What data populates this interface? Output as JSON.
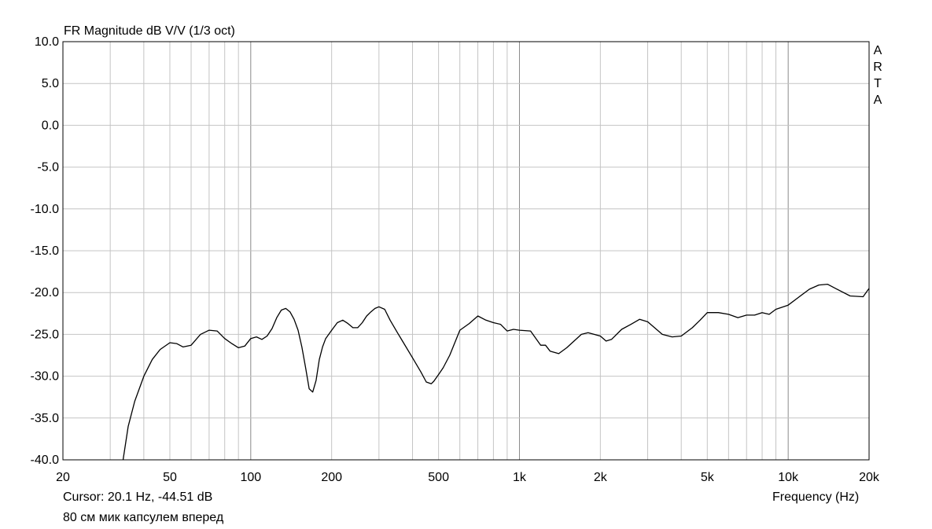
{
  "chart_data": {
    "type": "line",
    "title": "FR Magnitude dB V/V (1/3 oct)",
    "xlabel": "Frequency (Hz)",
    "ylabel": "",
    "x_scale": "log",
    "xlim": [
      20,
      20000
    ],
    "ylim": [
      -40,
      10
    ],
    "grid": true,
    "y_ticks": [
      "10.0",
      "5.0",
      "0.0",
      "-5.0",
      "-10.0",
      "-15.0",
      "-20.0",
      "-25.0",
      "-30.0",
      "-35.0",
      "-40.0"
    ],
    "x_ticks": [
      {
        "value": 20,
        "label": "20"
      },
      {
        "value": 50,
        "label": "50"
      },
      {
        "value": 100,
        "label": "100"
      },
      {
        "value": 200,
        "label": "200"
      },
      {
        "value": 500,
        "label": "500"
      },
      {
        "value": 1000,
        "label": "1k"
      },
      {
        "value": 2000,
        "label": "2k"
      },
      {
        "value": 5000,
        "label": "5k"
      },
      {
        "value": 10000,
        "label": "10k"
      },
      {
        "value": 20000,
        "label": "20k"
      }
    ],
    "watermark": [
      "A",
      "R",
      "T",
      "A"
    ],
    "series": [
      {
        "color": "#000000",
        "x": [
          33.5,
          35,
          37,
          40,
          43,
          46,
          50,
          53,
          56,
          60,
          65,
          70,
          75,
          80,
          85,
          90,
          95,
          100,
          105,
          110,
          115,
          120,
          125,
          130,
          135,
          140,
          145,
          150,
          155,
          160,
          165,
          170,
          175,
          180,
          185,
          190,
          200,
          210,
          220,
          230,
          240,
          250,
          260,
          270,
          280,
          290,
          300,
          315,
          330,
          350,
          370,
          400,
          430,
          450,
          470,
          480,
          500,
          520,
          550,
          600,
          650,
          700,
          750,
          800,
          850,
          900,
          950,
          1000,
          1100,
          1200,
          1250,
          1300,
          1400,
          1500,
          1700,
          1800,
          2000,
          2100,
          2200,
          2400,
          2600,
          2800,
          3000,
          3400,
          3700,
          4000,
          4400,
          4700,
          5000,
          5500,
          6000,
          6500,
          7000,
          7500,
          8000,
          8500,
          9000,
          10000,
          11000,
          12000,
          13000,
          14000,
          15000,
          17000,
          19000,
          20000
        ],
        "y": [
          -40.0,
          -36.0,
          -33.0,
          -30.0,
          -28.0,
          -26.8,
          -26.0,
          -26.1,
          -26.5,
          -26.3,
          -25.0,
          -24.5,
          -24.6,
          -25.5,
          -26.1,
          -26.6,
          -26.4,
          -25.5,
          -25.3,
          -25.6,
          -25.2,
          -24.3,
          -23.0,
          -22.1,
          -21.9,
          -22.3,
          -23.2,
          -24.5,
          -26.5,
          -29.0,
          -31.5,
          -31.9,
          -30.5,
          -28.0,
          -26.5,
          -25.5,
          -24.5,
          -23.6,
          -23.3,
          -23.7,
          -24.2,
          -24.2,
          -23.6,
          -22.8,
          -22.3,
          -21.9,
          -21.7,
          -22.0,
          -23.3,
          -24.7,
          -26.0,
          -27.8,
          -29.5,
          -30.7,
          -30.9,
          -30.6,
          -29.8,
          -29.0,
          -27.5,
          -24.5,
          -23.7,
          -22.8,
          -23.3,
          -23.6,
          -23.8,
          -24.6,
          -24.4,
          -24.5,
          -24.6,
          -26.3,
          -26.3,
          -27.0,
          -27.3,
          -26.6,
          -25.0,
          -24.8,
          -25.2,
          -25.8,
          -25.6,
          -24.4,
          -23.8,
          -23.2,
          -23.5,
          -25.0,
          -25.3,
          -25.2,
          -24.2,
          -23.3,
          -22.4,
          -22.4,
          -22.6,
          -23.0,
          -22.7,
          -22.7,
          -22.4,
          -22.6,
          -22.0,
          -21.5,
          -20.5,
          -19.6,
          -19.1,
          -19.0,
          -19.5,
          -20.4,
          -20.5,
          -19.5
        ]
      }
    ]
  },
  "footer": {
    "cursor": "Cursor: 20.1 Hz, -44.51 dB",
    "note": "80 см мик капсулем вперед",
    "frequency_label": "Frequency (Hz)"
  }
}
